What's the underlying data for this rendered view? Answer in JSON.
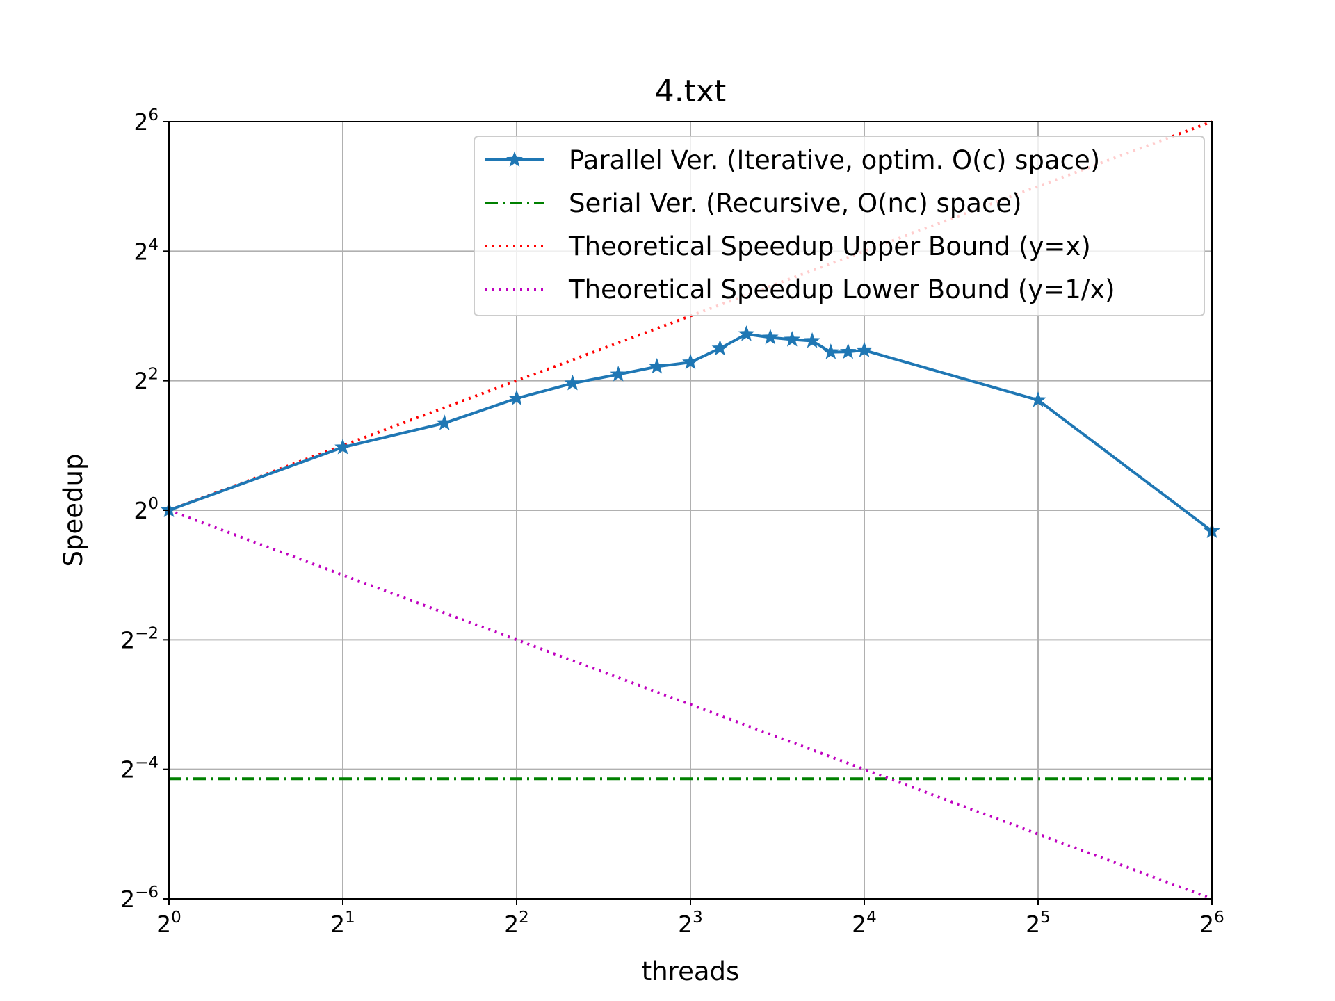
{
  "chart_data": {
    "type": "line",
    "title": "4.txt",
    "xlabel": "threads",
    "ylabel": "Speedup",
    "xscale": "log2",
    "yscale": "log2",
    "xlim": [
      1,
      64
    ],
    "ylim": [
      0.015625,
      64
    ],
    "grid": true,
    "legend_position": "top-right",
    "xticks": [
      {
        "base": "2",
        "exp": "0"
      },
      {
        "base": "2",
        "exp": "1"
      },
      {
        "base": "2",
        "exp": "2"
      },
      {
        "base": "2",
        "exp": "3"
      },
      {
        "base": "2",
        "exp": "4"
      },
      {
        "base": "2",
        "exp": "5"
      },
      {
        "base": "2",
        "exp": "6"
      }
    ],
    "yticks": [
      {
        "base": "2",
        "exp": "−6"
      },
      {
        "base": "2",
        "exp": "−4"
      },
      {
        "base": "2",
        "exp": "−2"
      },
      {
        "base": "2",
        "exp": "0"
      },
      {
        "base": "2",
        "exp": "2"
      },
      {
        "base": "2",
        "exp": "4"
      },
      {
        "base": "2",
        "exp": "6"
      }
    ],
    "series": [
      {
        "name": "Parallel Ver. (Iterative, optim. O(c) space)",
        "color": "#1f77b4",
        "style": "solid",
        "marker": "star",
        "x": [
          1,
          2,
          3,
          4,
          5,
          6,
          7,
          8,
          9,
          10,
          11,
          12,
          13,
          14,
          15,
          16,
          32,
          64
        ],
        "y": [
          1.0,
          1.96,
          2.54,
          3.31,
          3.89,
          4.28,
          4.65,
          4.87,
          5.65,
          6.59,
          6.35,
          6.21,
          6.12,
          5.43,
          5.45,
          5.54,
          3.25,
          0.8
        ]
      },
      {
        "name": "Serial Ver. (Recursive, O(nc) space)",
        "color": "#008000",
        "style": "dashdot",
        "x": [
          1,
          64
        ],
        "y": [
          0.0565,
          0.0565
        ]
      },
      {
        "name": "Theoretical Speedup Upper Bound (y=x)",
        "color": "#ff0000",
        "style": "dotted",
        "x": [
          1,
          64
        ],
        "y": [
          1,
          64
        ]
      },
      {
        "name": "Theoretical Speedup Lower Bound (y=1/x)",
        "color": "#bf00bf",
        "style": "dotted",
        "x": [
          1,
          64
        ],
        "y": [
          1,
          0.015625
        ]
      }
    ]
  }
}
